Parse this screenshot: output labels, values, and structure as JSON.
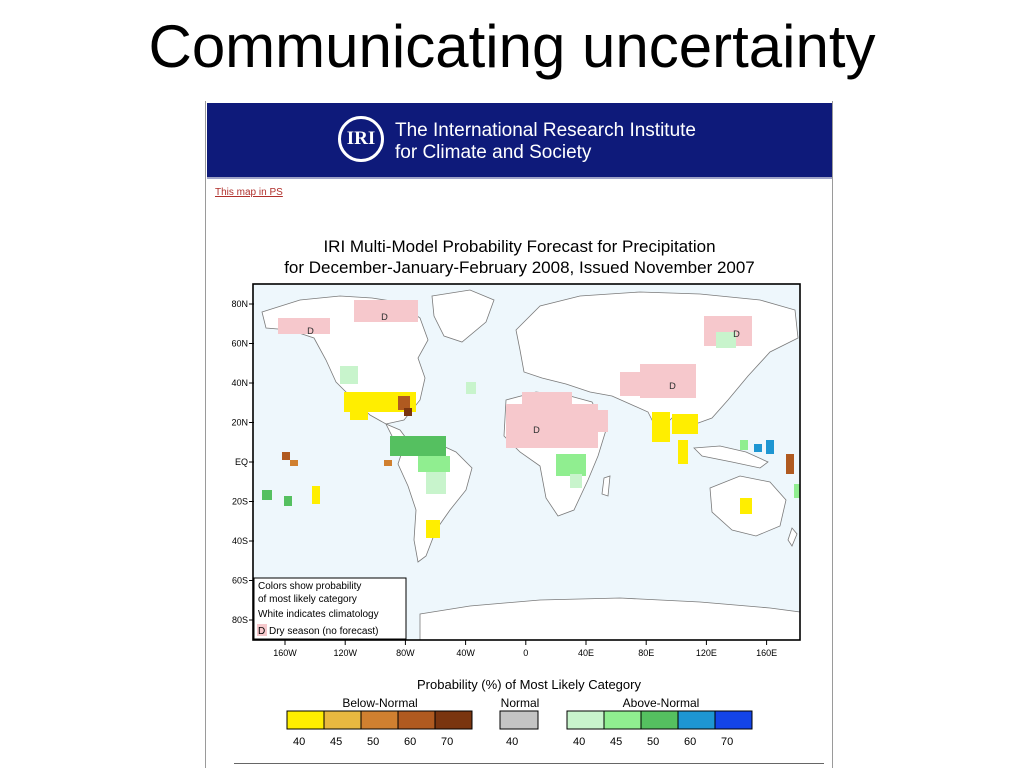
{
  "slide": {
    "title": "Communicating uncertainty"
  },
  "header": {
    "logo_text": "IRI",
    "institution_line1": "The International Research Institute",
    "institution_line2": "for Climate and Society"
  },
  "link": {
    "label": "This map in PS"
  },
  "map": {
    "title_line1": "IRI Multi-Model Probability Forecast for Precipitation",
    "title_line2": "for December-January-February 2008, Issued November 2007",
    "lat_ticks": [
      "80N",
      "60N",
      "40N",
      "20N",
      "EQ",
      "20S",
      "40S",
      "60S",
      "80S"
    ],
    "lon_ticks": [
      "160W",
      "120W",
      "80W",
      "40W",
      "0",
      "40E",
      "80E",
      "120E",
      "160E"
    ],
    "dry_marker": "D",
    "legend_box": {
      "line1": "Colors show probability",
      "line2": "of most likely category",
      "line3": "White indicates climatology",
      "line4": "Dry season (no forecast)"
    }
  },
  "colorbar": {
    "title": "Probability (%) of Most Likely Category",
    "below_label": "Below-Normal",
    "normal_label": "Normal",
    "above_label": "Above-Normal",
    "below_ticks": [
      "40",
      "45",
      "50",
      "60",
      "70"
    ],
    "normal_ticks": [
      "40"
    ],
    "above_ticks": [
      "40",
      "45",
      "50",
      "60",
      "70"
    ],
    "below_colors": [
      "#ffee00",
      "#e8b840",
      "#d08030",
      "#b05a20",
      "#7a3510"
    ],
    "normal_colors": [
      "#c4c4c4"
    ],
    "above_colors": [
      "#c8f4cc",
      "#90ee90",
      "#55c060",
      "#1e96d2",
      "#1444e8"
    ]
  },
  "colors": {
    "banner": "#0e1a7a",
    "dry_season": "#f6c8cc",
    "ocean": "#eef7fc",
    "land": "#ffffff"
  }
}
